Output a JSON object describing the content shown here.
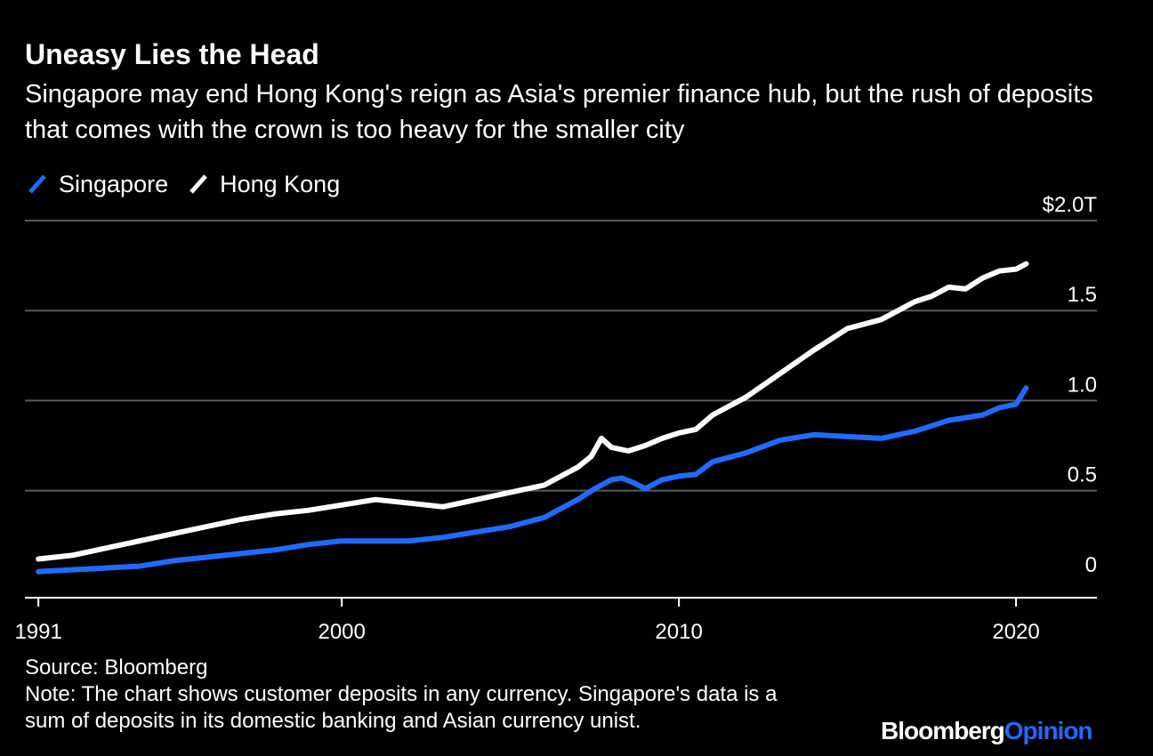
{
  "header": {
    "title": "Uneasy Lies the Head",
    "subtitle": "Singapore may end Hong Kong's reign as Asia's premier finance hub, but the rush of deposits that comes with the crown is too heavy for the smaller city"
  },
  "legend": {
    "items": [
      {
        "label": "Singapore",
        "color": "#1f6bff"
      },
      {
        "label": "Hong Kong",
        "color": "#ffffff"
      }
    ]
  },
  "footer": {
    "source": "Source: Bloomberg",
    "note_line1": "Note: The chart shows customer deposits in any currency. Singapore's data is a",
    "note_line2": "sum of deposits in its domestic banking and Asian currency unist."
  },
  "brand": {
    "part1": "Bloomberg",
    "part2": "Opinion",
    "accent_color": "#1f6bff"
  },
  "chart_data": {
    "type": "line",
    "title": "Uneasy Lies the Head",
    "xlabel": "",
    "ylabel": "",
    "xlim": [
      1990.6,
      2022.4
    ],
    "ylim": [
      -0.1,
      2.0
    ],
    "grid": true,
    "legend_position": "top-left",
    "x_ticks": [
      {
        "value": 1991,
        "label": "1991"
      },
      {
        "value": 2000,
        "label": "2000"
      },
      {
        "value": 2010,
        "label": "2010"
      },
      {
        "value": 2020,
        "label": "2020"
      }
    ],
    "y_ticks": [
      {
        "value": 0,
        "label": "0"
      },
      {
        "value": 0.5,
        "label": "0.5"
      },
      {
        "value": 1.0,
        "label": "1.0"
      },
      {
        "value": 1.5,
        "label": "1.5"
      },
      {
        "value": 2.0,
        "label": "$2.0T"
      }
    ],
    "series": [
      {
        "name": "Singapore",
        "color": "#1f6bff",
        "x": [
          1991,
          1992,
          1993,
          1994,
          1995,
          1996,
          1997,
          1998,
          1999,
          2000,
          2001,
          2002,
          2003,
          2004,
          2005,
          2006,
          2007,
          2007.5,
          2008,
          2008.3,
          2008.7,
          2009,
          2009.5,
          2010,
          2010.5,
          2011,
          2012,
          2013,
          2014,
          2015,
          2016,
          2017,
          2018,
          2019,
          2019.5,
          2020,
          2020.3
        ],
        "y": [
          0.05,
          0.06,
          0.07,
          0.08,
          0.11,
          0.13,
          0.15,
          0.17,
          0.2,
          0.22,
          0.22,
          0.22,
          0.24,
          0.27,
          0.3,
          0.35,
          0.45,
          0.51,
          0.56,
          0.57,
          0.54,
          0.51,
          0.56,
          0.58,
          0.59,
          0.66,
          0.71,
          0.78,
          0.81,
          0.8,
          0.79,
          0.83,
          0.89,
          0.92,
          0.96,
          0.98,
          1.07
        ]
      },
      {
        "name": "Hong Kong",
        "color": "#ffffff",
        "x": [
          1991,
          1992,
          1993,
          1994,
          1995,
          1996,
          1997,
          1998,
          1999,
          2000,
          2001,
          2002,
          2003,
          2004,
          2005,
          2006,
          2006.5,
          2007,
          2007.4,
          2007.7,
          2008,
          2008.5,
          2009,
          2009.5,
          2010,
          2010.5,
          2011,
          2012,
          2013,
          2014,
          2015,
          2016,
          2017,
          2017.5,
          2018,
          2018.5,
          2019,
          2019.5,
          2020,
          2020.3
        ],
        "y": [
          0.12,
          0.14,
          0.18,
          0.22,
          0.26,
          0.3,
          0.34,
          0.37,
          0.39,
          0.42,
          0.45,
          0.43,
          0.41,
          0.45,
          0.49,
          0.53,
          0.58,
          0.63,
          0.69,
          0.79,
          0.74,
          0.72,
          0.75,
          0.79,
          0.82,
          0.84,
          0.92,
          1.02,
          1.15,
          1.28,
          1.4,
          1.45,
          1.55,
          1.58,
          1.63,
          1.62,
          1.68,
          1.72,
          1.73,
          1.76
        ]
      }
    ]
  }
}
